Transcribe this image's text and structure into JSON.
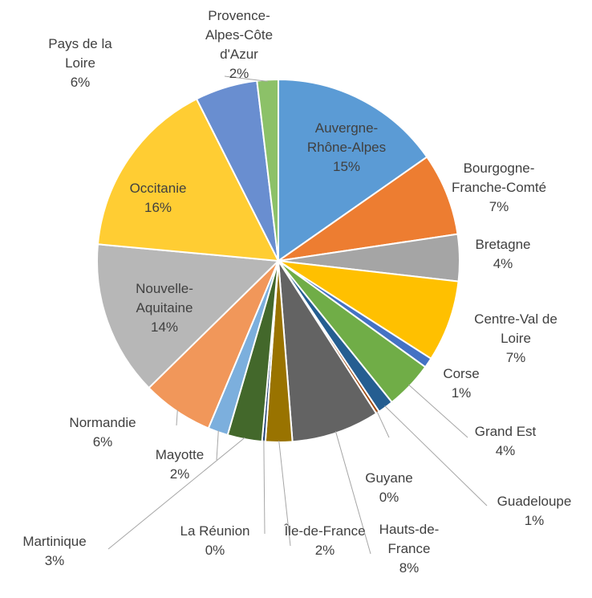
{
  "chart_data": {
    "type": "pie",
    "categories": [
      "Auvergne-Rhône-Alpes",
      "Bourgogne-Franche-Comté",
      "Bretagne",
      "Centre-Val de Loire",
      "Corse",
      "Grand Est",
      "Guadeloupe",
      "Guyane",
      "Hauts-de-France",
      "Île-de-France",
      "La Réunion",
      "Martinique",
      "Mayotte",
      "Normandie",
      "Nouvelle-Aquitaine",
      "Occitanie",
      "Pays de la Loire",
      "Provence-Alpes-Côte d'Azur"
    ],
    "values": [
      15.4,
      7.4,
      4.2,
      7.3,
      0.9,
      4.3,
      1.4,
      0.3,
      7.9,
      2.4,
      0.3,
      3.1,
      1.8,
      6.4,
      13.9,
      16.2,
      5.6,
      1.9
    ],
    "value_labels": [
      "15%",
      "7%",
      "4%",
      "7%",
      "1%",
      "4%",
      "1%",
      "0%",
      "8%",
      "2%",
      "0%",
      "3%",
      "2%",
      "6%",
      "14%",
      "16%",
      "6%",
      "2%"
    ],
    "colors": [
      "#5b9bd5",
      "#ed7d31",
      "#a5a5a5",
      "#ffc000",
      "#4472c4",
      "#70ad47",
      "#255e91",
      "#9e480e",
      "#636363",
      "#997300",
      "#264478",
      "#43682b",
      "#7cafdd",
      "#f1975a",
      "#b7b7b7",
      "#ffcd33",
      "#698ed0",
      "#8cc168"
    ]
  }
}
